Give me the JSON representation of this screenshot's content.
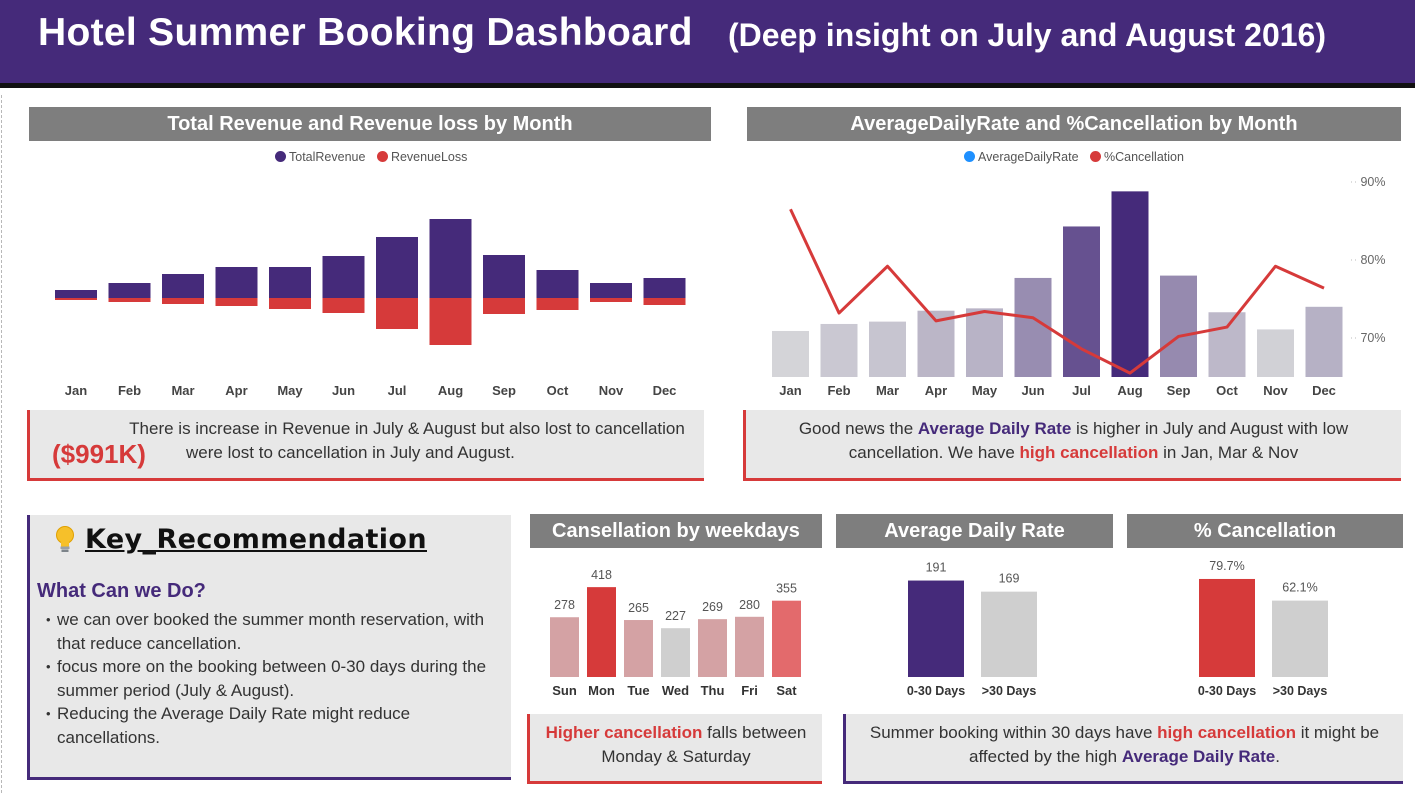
{
  "header": {
    "title": "Hotel Summer Booking Dashboard",
    "subtitle": "(Deep insight on July and August 2016)"
  },
  "colors": {
    "purple": "#452a7a",
    "red": "#d63a3a",
    "gray_title": "#7e7e7e",
    "panel_bg": "#e8e8e8",
    "light_gray": "#cfcfcf",
    "blue_dot": "#1e90ff"
  },
  "revenue_panel": {
    "title": "Total Revenue and Revenue loss by Month",
    "legend": [
      "TotalRevenue",
      "RevenueLoss"
    ]
  },
  "adr_panel": {
    "title": "AverageDailyRate and %Cancellation by Month",
    "legend": [
      "AverageDailyRate",
      "%Cancellation"
    ]
  },
  "revenue_note": {
    "line1": "There is increase in Revenue in July & August but also lost to cancellation",
    "amount": "($991K)",
    "line2": "were lost to cancellation in July and August."
  },
  "adr_note": {
    "p1": "Good news the ",
    "h1": "Average Daily Rate",
    "p2": " is higher in July and August with low cancellation. We have ",
    "h2": "high cancellation",
    "p3": " in Jan, Mar & Nov"
  },
  "recommendation": {
    "icon": "lightbulb-icon",
    "title": "Key_Recommendation",
    "subtitle": "What Can we Do?",
    "items": [
      "we can over booked the summer month reservation, with that reduce cancellation.",
      "focus more on the booking between 0-30 days during the summer period (July & August).",
      "Reducing the Average Daily Rate might reduce cancellations."
    ]
  },
  "weekday_panel": {
    "title": "Cansellation by weekdays"
  },
  "adr_days_panel": {
    "title": "Average Daily Rate"
  },
  "cancel_days_panel": {
    "title": "% Cancellation"
  },
  "weekday_note": {
    "h1": "Higher cancellation",
    "p1": " falls between Monday & Saturday"
  },
  "days_note": {
    "p1": "Summer booking within 30 days have ",
    "h1": "high cancellation",
    "p2": " it might be affected by the high ",
    "h2": "Average Daily Rate",
    "p3": "."
  },
  "chart_data": [
    {
      "type": "bar",
      "categories": [
        "Jan",
        "Feb",
        "Mar",
        "Apr",
        "May",
        "Jun",
        "Jul",
        "Aug",
        "Sep",
        "Oct",
        "Nov",
        "Dec"
      ],
      "series": [
        {
          "name": "TotalRevenue",
          "color": "#452a7a",
          "values": [
            8,
            15,
            24,
            31,
            31,
            42,
            61,
            79,
            43,
            28,
            15,
            20
          ]
        },
        {
          "name": "RevenueLoss",
          "color": "#d63a3a",
          "values": [
            -2,
            -4,
            -6,
            -8,
            -11,
            -15,
            -31,
            -47,
            -16,
            -12,
            -4,
            -7
          ]
        }
      ],
      "xlabel": "",
      "ylabel": ""
    },
    {
      "type": "bar+line",
      "categories": [
        "Jan",
        "Feb",
        "Mar",
        "Apr",
        "May",
        "Jun",
        "Jul",
        "Aug",
        "Sep",
        "Oct",
        "Nov",
        "Dec"
      ],
      "series": [
        {
          "name": "AverageDailyRate",
          "color": "#1e90ff",
          "values": [
            59,
            68,
            71,
            85,
            88,
            127,
            193,
            238,
            130,
            83,
            61,
            90
          ]
        },
        {
          "name": "%Cancellation",
          "color": "#d63a3a",
          "axis": "right",
          "values": [
            86.5,
            73.2,
            79.2,
            72.2,
            73.4,
            72.6,
            68.6,
            65.5,
            70.2,
            71.4,
            79.2,
            76.4
          ]
        }
      ],
      "y2_ticks": [
        "90%",
        "80%",
        "70%"
      ],
      "y2lim": [
        65,
        90
      ]
    },
    {
      "type": "bar",
      "categories": [
        "Sun",
        "Mon",
        "Tue",
        "Wed",
        "Thu",
        "Fri",
        "Sat"
      ],
      "values": [
        278,
        418,
        265,
        227,
        269,
        280,
        355
      ],
      "labels": [
        "278",
        "418",
        "265",
        "227",
        "269",
        "280",
        "355"
      ]
    },
    {
      "type": "bar",
      "categories": [
        "0-30 Days",
        ">30 Days"
      ],
      "values": [
        191,
        169
      ],
      "labels": [
        "191",
        "169"
      ]
    },
    {
      "type": "bar",
      "categories": [
        "0-30 Days",
        ">30 Days"
      ],
      "values": [
        79.7,
        62.1
      ],
      "labels": [
        "79.7%",
        "62.1%"
      ]
    }
  ]
}
